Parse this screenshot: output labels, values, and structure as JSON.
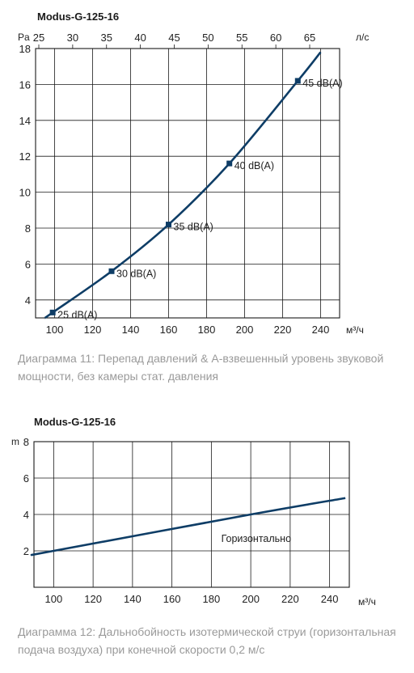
{
  "chart_data": [
    {
      "type": "line",
      "title": "Modus-G-125-16",
      "xlabel": "м³/ч",
      "ylabel": "Pa",
      "x2label": "л/с",
      "xlim": [
        90,
        250
      ],
      "ylim": [
        3,
        18
      ],
      "x_ticks": [
        100,
        120,
        140,
        160,
        180,
        200,
        220,
        240
      ],
      "y_ticks": [
        4,
        6,
        8,
        10,
        12,
        14,
        16,
        18
      ],
      "x2_ticks": [
        25,
        30,
        35,
        40,
        45,
        50,
        55,
        60,
        65
      ],
      "grid": true,
      "series": [
        {
          "x": [
            95,
            99,
            130,
            160,
            192,
            228,
            240
          ],
          "y": [
            3.0,
            3.3,
            5.6,
            8.2,
            11.6,
            16.2,
            17.8
          ]
        }
      ],
      "markers": [
        {
          "x": 99,
          "y": 3.3,
          "label": "25 dB(A)"
        },
        {
          "x": 130,
          "y": 5.6,
          "label": "30 dB(A)"
        },
        {
          "x": 160,
          "y": 8.2,
          "label": "35 dB(A)"
        },
        {
          "x": 192,
          "y": 11.6,
          "label": "40 dB(A)"
        },
        {
          "x": 228,
          "y": 16.2,
          "label": "45 dB(A)"
        }
      ],
      "caption": "Диаграмма 11: Перепад давлений & A-взвешенный уровень звуковой мощности, без камеры стат. давления"
    },
    {
      "type": "line",
      "title": "Modus-G-125-16",
      "xlabel": "м³/ч",
      "ylabel": "m",
      "xlim": [
        90,
        250
      ],
      "ylim": [
        0,
        8
      ],
      "x_ticks": [
        100,
        120,
        140,
        160,
        180,
        200,
        220,
        240
      ],
      "y_ticks": [
        2,
        4,
        6,
        8
      ],
      "grid": true,
      "series": [
        {
          "name": "Горизонтально",
          "x": [
            90,
            100,
            200,
            248
          ],
          "y": [
            1.8,
            2.0,
            4.0,
            4.9
          ]
        }
      ],
      "caption": "Диаграмма 12: Дальнобойность изотермической струи (горизонтальная подача воздуха) при конечной скорости 0,2 м/с"
    }
  ]
}
